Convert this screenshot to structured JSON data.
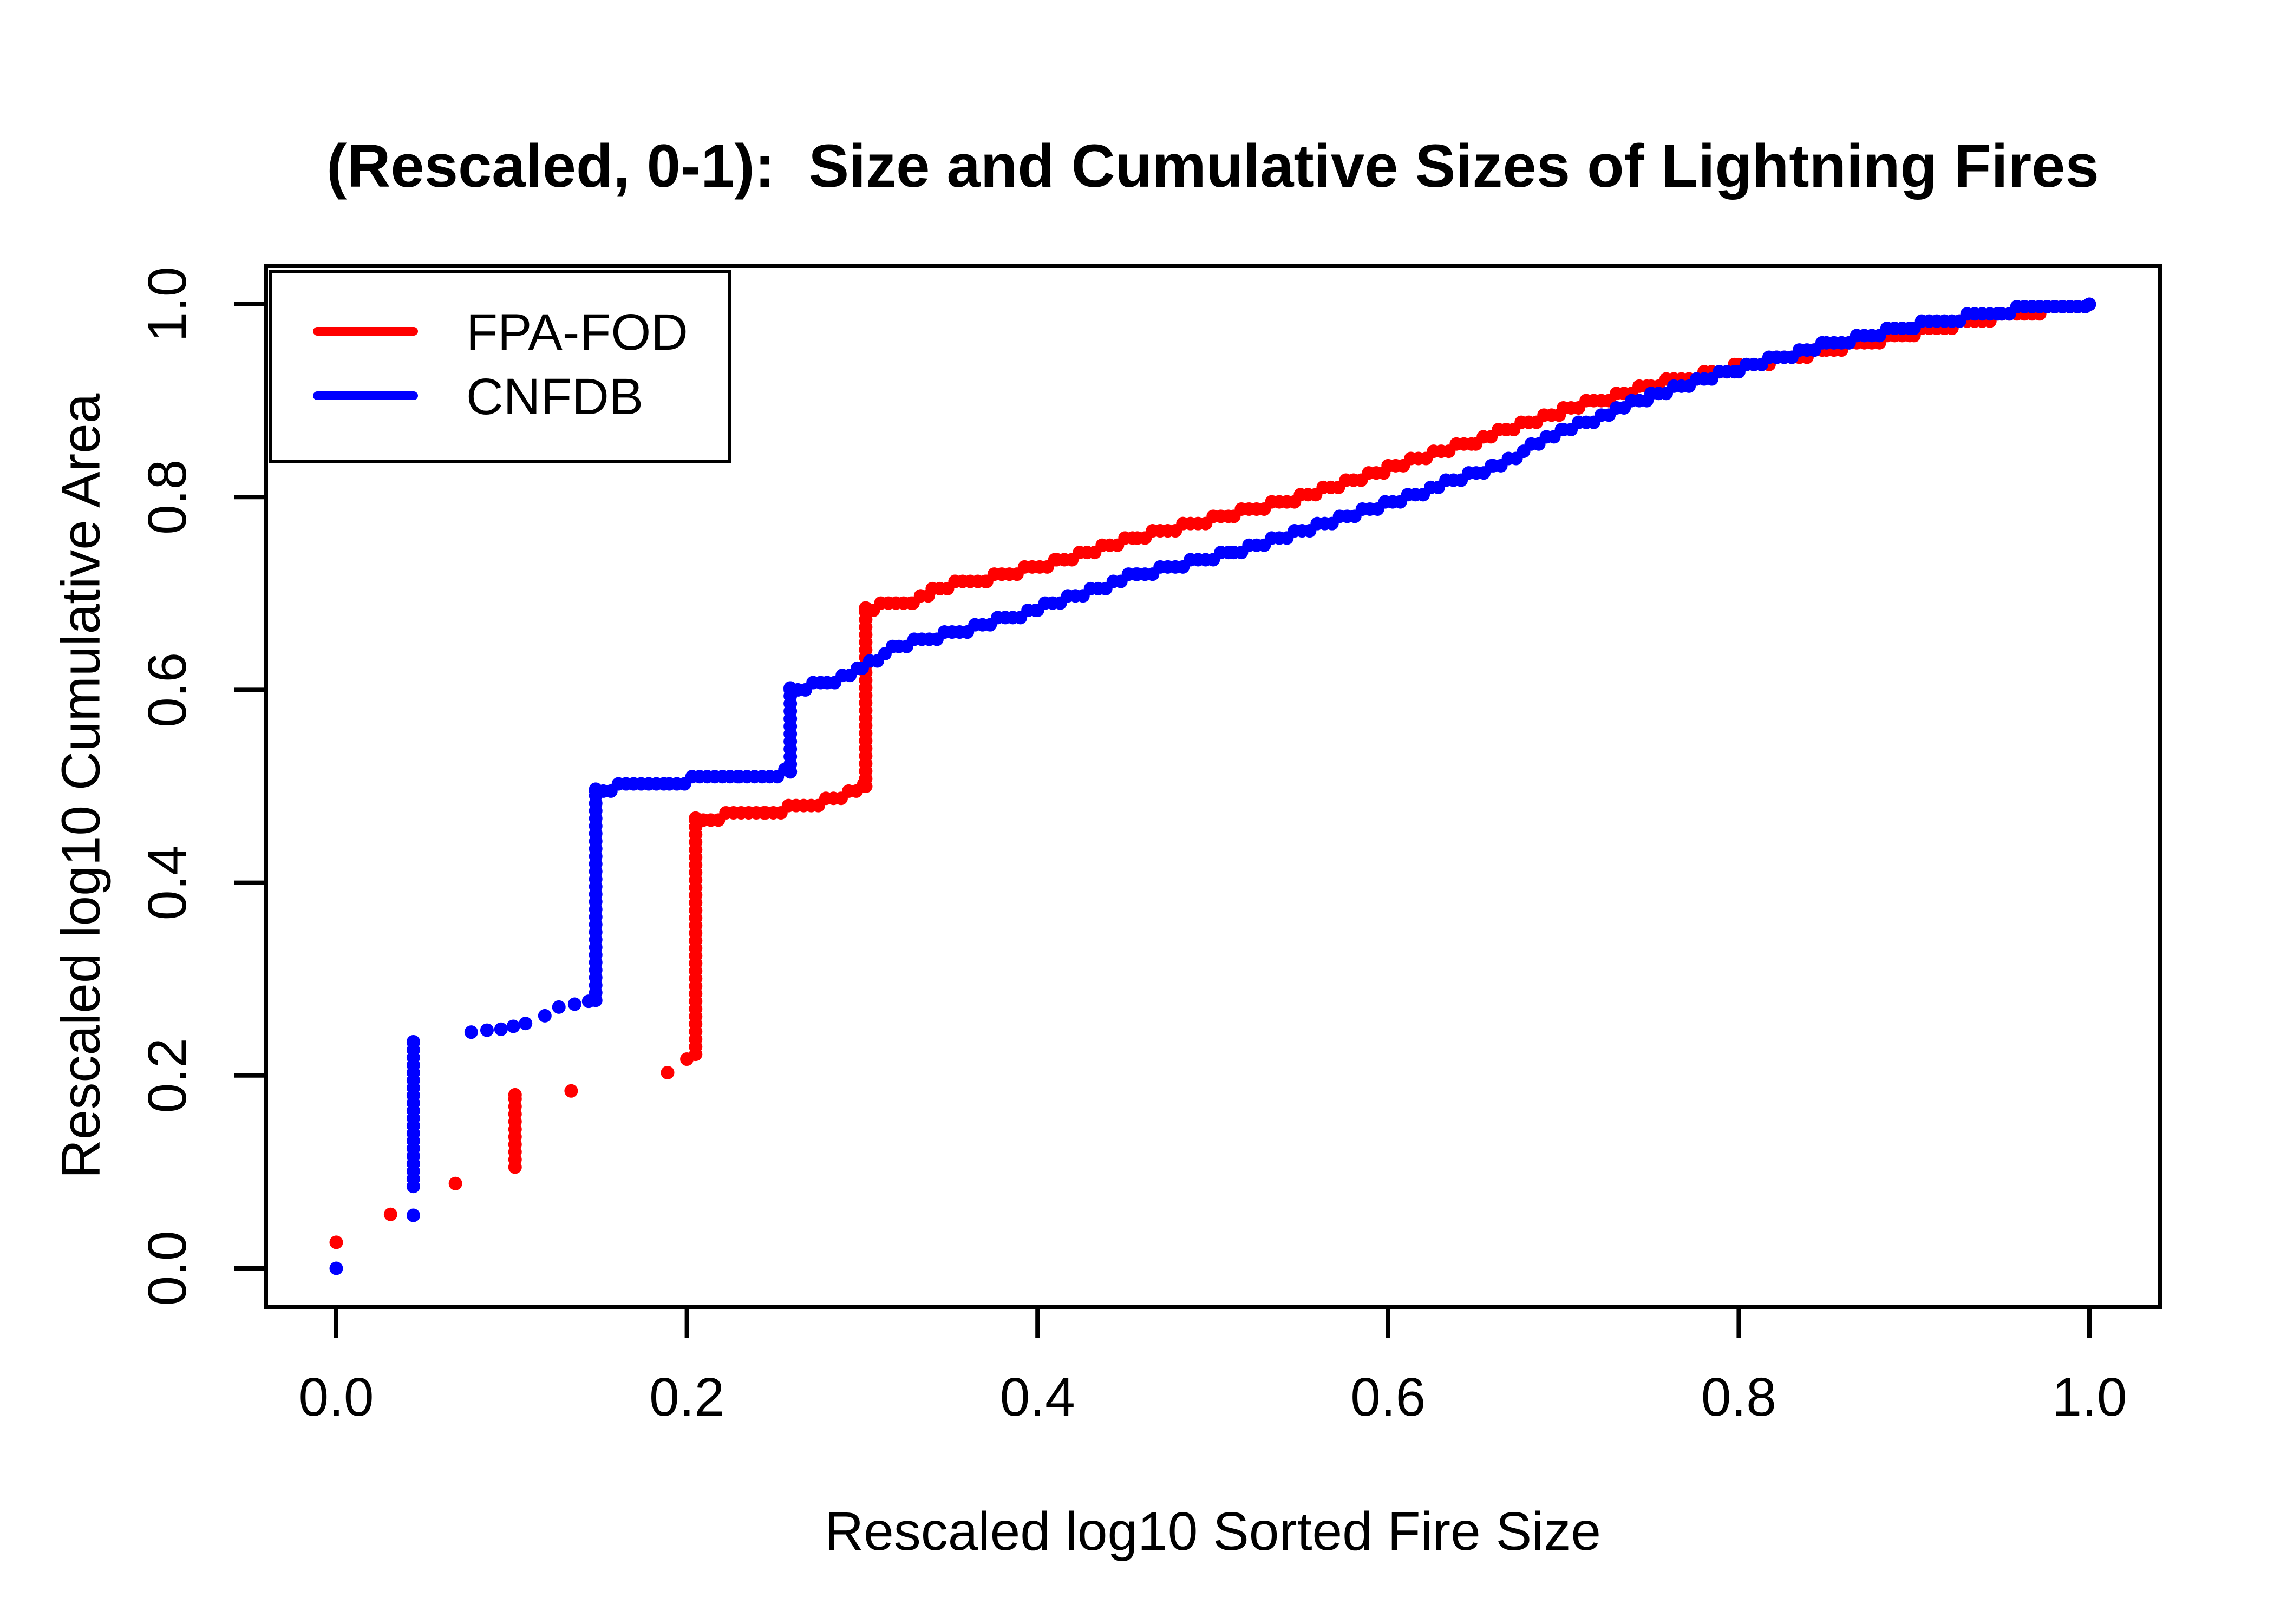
{
  "title": {
    "text": "(Rescaled, 0-1):  Size and Cumulative Sizes of Lightning Fires"
  },
  "axes": {
    "x_label": "Rescaled log10 Sorted Fire Size",
    "y_label": "Rescaled log10 Cumulative Area",
    "x_tick_labels": [
      "0.0",
      "0.2",
      "0.4",
      "0.6",
      "0.8",
      "1.0"
    ],
    "y_tick_labels": [
      "0.0",
      "0.2",
      "0.4",
      "0.6",
      "0.8",
      "1.0"
    ]
  },
  "legend": {
    "position": "topleft",
    "items": [
      {
        "label": "FPA-FOD",
        "color": "#ff0000"
      },
      {
        "label": "CNFDB",
        "color": "#0000ff"
      }
    ]
  },
  "chart_data": {
    "type": "scatter",
    "title": "(Rescaled, 0-1):  Size and Cumulative Sizes of Lightning Fires",
    "xlabel": "Rescaled log10 Sorted Fire Size",
    "ylabel": "Rescaled log10 Cumulative Area",
    "xlim": [
      0,
      1
    ],
    "ylim": [
      0,
      1
    ],
    "x_ticks": [
      0,
      0.2,
      0.4,
      0.6,
      0.8,
      1
    ],
    "y_ticks": [
      0,
      0.2,
      0.4,
      0.6,
      0.8,
      1
    ],
    "grid": false,
    "legend_position": "topleft",
    "marker_description": "filled circles forming dense step curves; vertical_runs are large single-size-class jumps in the cumulative curve",
    "series": [
      {
        "name": "FPA-FOD",
        "color": "#ff0000",
        "marker": "filled-circle",
        "isolated_points": [
          [
            0.0,
            0.027
          ],
          [
            0.031,
            0.056
          ],
          [
            0.068,
            0.088
          ],
          [
            0.134,
            0.184
          ],
          [
            0.189,
            0.203
          ],
          [
            0.2,
            0.217
          ]
        ],
        "vertical_runs": [
          {
            "x": 0.102,
            "from": 0.105,
            "to": 0.18
          },
          {
            "x": 0.205,
            "from": 0.222,
            "to": 0.467
          },
          {
            "x": 0.302,
            "from": 0.5,
            "to": 0.685
          }
        ],
        "step_paths": [
          [
            [
              0.205,
              0.467
            ],
            [
              0.245,
              0.472
            ],
            [
              0.275,
              0.483
            ],
            [
              0.302,
              0.5
            ]
          ],
          [
            [
              0.302,
              0.685
            ],
            [
              0.329,
              0.69
            ],
            [
              0.34,
              0.703
            ],
            [
              0.353,
              0.709
            ],
            [
              0.371,
              0.715
            ],
            [
              0.411,
              0.732
            ],
            [
              0.457,
              0.758
            ],
            [
              0.512,
              0.782
            ],
            [
              0.55,
              0.8
            ],
            [
              0.6,
              0.83
            ],
            [
              0.65,
              0.858
            ],
            [
              0.7,
              0.89
            ],
            [
              0.75,
              0.916
            ],
            [
              0.8,
              0.935
            ],
            [
              0.85,
              0.952
            ],
            [
              0.9,
              0.97
            ],
            [
              0.95,
              0.988
            ],
            [
              1.0,
              1.0
            ]
          ]
        ]
      },
      {
        "name": "CNFDB",
        "color": "#0000ff",
        "marker": "filled-circle",
        "isolated_points": [
          [
            0.0,
            0.0
          ],
          [
            0.044,
            0.055
          ],
          [
            0.077,
            0.245
          ],
          [
            0.086,
            0.247
          ],
          [
            0.094,
            0.248
          ],
          [
            0.101,
            0.251
          ],
          [
            0.108,
            0.254
          ],
          [
            0.119,
            0.262
          ],
          [
            0.127,
            0.271
          ],
          [
            0.136,
            0.274
          ],
          [
            0.144,
            0.277
          ]
        ],
        "vertical_runs": [
          {
            "x": 0.044,
            "from": 0.085,
            "to": 0.235
          },
          {
            "x": 0.148,
            "from": 0.278,
            "to": 0.497
          },
          {
            "x": 0.259,
            "from": 0.515,
            "to": 0.602
          }
        ],
        "step_paths": [
          [
            [
              0.148,
              0.497
            ],
            [
              0.19,
              0.505
            ],
            [
              0.23,
              0.51
            ],
            [
              0.259,
              0.515
            ]
          ],
          [
            [
              0.259,
              0.602
            ],
            [
              0.28,
              0.606
            ],
            [
              0.3,
              0.625
            ],
            [
              0.321,
              0.645
            ],
            [
              0.36,
              0.662
            ],
            [
              0.4,
              0.684
            ],
            [
              0.457,
              0.72
            ],
            [
              0.512,
              0.743
            ],
            [
              0.568,
              0.776
            ],
            [
              0.62,
              0.805
            ],
            [
              0.66,
              0.832
            ],
            [
              0.7,
              0.868
            ],
            [
              0.75,
              0.905
            ],
            [
              0.8,
              0.933
            ],
            [
              0.85,
              0.958
            ],
            [
              0.9,
              0.978
            ],
            [
              0.95,
              0.993
            ],
            [
              1.0,
              1.0
            ]
          ]
        ]
      }
    ]
  }
}
